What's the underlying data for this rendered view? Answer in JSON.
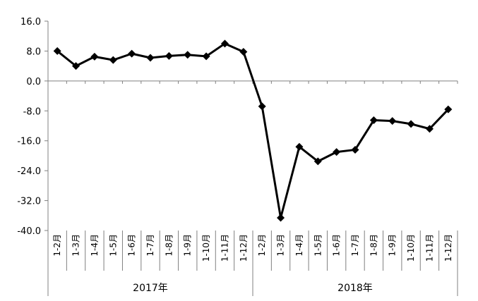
{
  "chart_data": {
    "type": "line",
    "title": "",
    "xlabel": "",
    "ylabel": "",
    "ylim": [
      -40.0,
      16.0
    ],
    "y_ticks": [
      "16.0",
      "8.0",
      "0.0",
      "-8.0",
      "-16.0",
      "-24.0",
      "-32.0",
      "-40.0"
    ],
    "y_tick_values": [
      16,
      8,
      0,
      -8,
      -16,
      -24,
      -32,
      -40
    ],
    "grid": false,
    "legend": "none",
    "categories": [
      "1-2月",
      "1-3月",
      "1-4月",
      "1-5月",
      "1-6月",
      "1-7月",
      "1-8月",
      "1-9月",
      "1-10月",
      "1-11月",
      "1-12月",
      "1-2月",
      "1-3月",
      "1-4月",
      "1-5月",
      "1-6月",
      "1-7月",
      "1-8月",
      "1-9月",
      "1-10月",
      "1-11月",
      "1-12月"
    ],
    "groups": [
      {
        "label": "2017年",
        "start": 0,
        "count": 11
      },
      {
        "label": "2018年",
        "start": 11,
        "count": 11
      }
    ],
    "series": [
      {
        "values": [
          8.0,
          4.0,
          6.5,
          5.6,
          7.3,
          6.2,
          6.7,
          7.0,
          6.6,
          10.0,
          7.8,
          -6.8,
          -36.6,
          -17.6,
          -21.5,
          -19.0,
          -18.4,
          -10.5,
          -10.7,
          -11.5,
          -12.8,
          -7.6
        ],
        "color": "#000000",
        "marker": "diamond"
      }
    ]
  }
}
